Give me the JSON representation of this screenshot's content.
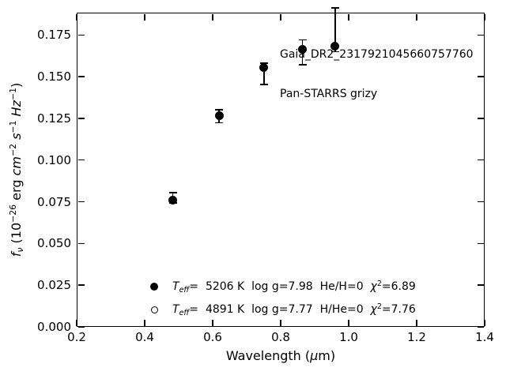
{
  "figure": {
    "background_color": "#ffffff",
    "foreground_color": "#000000"
  },
  "chart_data": {
    "type": "scatter",
    "title": "",
    "annotation": [
      "Gaia_DR2_2317921045660757760",
      "Pan-STARRS grizy"
    ],
    "xlabel": "Wavelength (μm)",
    "ylabel": "fν (10−26 erg cm−2 s−1 Hz−1)",
    "xlabel_parts": [
      {
        "t": "Wavelength (",
        "s": "normal"
      },
      {
        "t": "μ",
        "s": "italic"
      },
      {
        "t": "m)",
        "s": "normal"
      }
    ],
    "ylabel_parts": [
      {
        "t": "f",
        "s": "italic"
      },
      {
        "t": "ν",
        "s": "italic-sub"
      },
      {
        "t": " (10",
        "s": "normal"
      },
      {
        "t": "−26",
        "s": "sup"
      },
      {
        "t": " erg ",
        "s": "normal"
      },
      {
        "t": "cm",
        "s": "italic"
      },
      {
        "t": "−2",
        "s": "sup"
      },
      {
        "t": " ",
        "s": "normal"
      },
      {
        "t": "s",
        "s": "italic"
      },
      {
        "t": "−1",
        "s": "sup"
      },
      {
        "t": " ",
        "s": "normal"
      },
      {
        "t": "Hz",
        "s": "italic"
      },
      {
        "t": "−1",
        "s": "sup"
      },
      {
        "t": ")",
        "s": "normal"
      }
    ],
    "xlim": [
      0.2,
      1.4
    ],
    "ylim": [
      0.0,
      0.1884
    ],
    "grid": false,
    "xticks": {
      "values": [
        0.2,
        0.4,
        0.6,
        0.8,
        1.0,
        1.2,
        1.4
      ],
      "labels": [
        "0.2",
        "0.4",
        "0.6",
        "0.8",
        "1.0",
        "1.2",
        "1.4"
      ]
    },
    "yticks": {
      "values": [
        0.0,
        0.025,
        0.05,
        0.075,
        0.1,
        0.125,
        0.15,
        0.175
      ],
      "labels": [
        "0.000",
        "0.025",
        "0.050",
        "0.075",
        "0.100",
        "0.125",
        "0.150",
        "0.175"
      ]
    },
    "series": [
      {
        "name": "Pan-STARRS grizy photometry",
        "marker": "filled-circle",
        "color": "#000000",
        "points": [
          {
            "band": "g",
            "x": 0.483,
            "y": 0.0758,
            "err_top": 0.0806,
            "err_bottom": 0.0742
          },
          {
            "band": "r",
            "x": 0.619,
            "y": 0.1264,
            "err_top": 0.1303,
            "err_bottom": 0.1224
          },
          {
            "band": "i",
            "x": 0.751,
            "y": 0.1556,
            "err_top": 0.158,
            "err_bottom": 0.1453
          },
          {
            "band": "z",
            "x": 0.864,
            "y": 0.1666,
            "err_top": 0.1721,
            "err_bottom": 0.1571
          },
          {
            "band": "y",
            "x": 0.96,
            "y": 0.1684,
            "err_top": 0.1911,
            "err_bottom": 0.165
          }
        ]
      }
    ],
    "legend": {
      "position": "lower-left-inside",
      "rows": [
        {
          "marker": "filled-circle",
          "label_text": "Teff=  5206 K  log g=7.98  He/H=0  χ2=6.89",
          "parts": [
            {
              "t": "T",
              "s": "italic"
            },
            {
              "t": "eff",
              "s": "italic-sub"
            },
            {
              "t": "=  ",
              "s": "normal"
            },
            {
              "t": "5206 K  log g=7.98  He/H=0  ",
              "s": "normal"
            },
            {
              "t": "χ",
              "s": "italic"
            },
            {
              "t": "2",
              "s": "sup"
            },
            {
              "t": "=6.89",
              "s": "normal"
            }
          ]
        },
        {
          "marker": "open-circle",
          "label_text": "Teff=  4891 K  log g=7.77  H/He=0  χ2=7.76",
          "parts": [
            {
              "t": "T",
              "s": "italic"
            },
            {
              "t": "eff",
              "s": "italic-sub"
            },
            {
              "t": "=  ",
              "s": "normal"
            },
            {
              "t": "4891 K  log g=7.77  H/He=0  ",
              "s": "normal"
            },
            {
              "t": "χ",
              "s": "italic"
            },
            {
              "t": "2",
              "s": "sup"
            },
            {
              "t": "=7.76",
              "s": "normal"
            }
          ]
        }
      ]
    }
  }
}
